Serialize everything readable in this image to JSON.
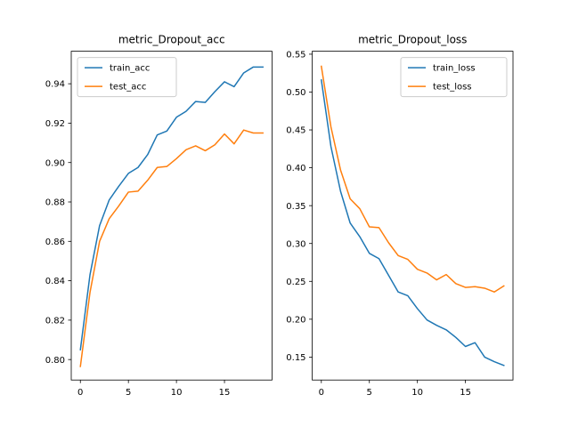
{
  "chart_data": [
    {
      "type": "line",
      "title": "metric_Dropout_acc",
      "xlabel": "",
      "ylabel": "",
      "xlim": [
        -0.95,
        19.95
      ],
      "ylim": [
        0.7896,
        0.9565
      ],
      "xticks": [
        0,
        5,
        10,
        15
      ],
      "yticks": [
        0.8,
        0.82,
        0.84,
        0.86,
        0.88,
        0.9,
        0.92,
        0.94
      ],
      "ytick_format": 2,
      "legend_position": "upper left",
      "grid": false,
      "x": [
        0,
        1,
        2,
        3,
        4,
        5,
        6,
        7,
        8,
        9,
        10,
        11,
        12,
        13,
        14,
        15,
        16,
        17,
        18,
        19
      ],
      "series": [
        {
          "name": "train_acc",
          "color": "#1f77b4",
          "values": [
            0.805,
            0.843,
            0.868,
            0.881,
            0.888,
            0.8945,
            0.8975,
            0.904,
            0.914,
            0.916,
            0.923,
            0.926,
            0.931,
            0.9305,
            0.936,
            0.941,
            0.9385,
            0.9455,
            0.9485,
            0.9485
          ]
        },
        {
          "name": "test_acc",
          "color": "#ff7f0e",
          "values": [
            0.7965,
            0.834,
            0.86,
            0.8715,
            0.878,
            0.885,
            0.8855,
            0.891,
            0.8975,
            0.898,
            0.902,
            0.9065,
            0.9085,
            0.906,
            0.909,
            0.9145,
            0.9095,
            0.9165,
            0.915,
            0.915
          ]
        }
      ]
    },
    {
      "type": "line",
      "title": "metric_Dropout_loss",
      "xlabel": "",
      "ylabel": "",
      "xlim": [
        -0.95,
        19.95
      ],
      "ylim": [
        0.1197,
        0.5539
      ],
      "xticks": [
        0,
        5,
        10,
        15
      ],
      "yticks": [
        0.15,
        0.2,
        0.25,
        0.3,
        0.35,
        0.4,
        0.45,
        0.5,
        0.55
      ],
      "ytick_format": 2,
      "legend_position": "upper right",
      "grid": false,
      "x": [
        0,
        1,
        2,
        3,
        4,
        5,
        6,
        7,
        8,
        9,
        10,
        11,
        12,
        13,
        14,
        15,
        16,
        17,
        18,
        19
      ],
      "series": [
        {
          "name": "train_loss",
          "color": "#1f77b4",
          "values": [
            0.516,
            0.428,
            0.369,
            0.327,
            0.309,
            0.287,
            0.28,
            0.258,
            0.236,
            0.231,
            0.214,
            0.199,
            0.192,
            0.186,
            0.176,
            0.164,
            0.169,
            0.15,
            0.144,
            0.139
          ]
        },
        {
          "name": "test_loss",
          "color": "#ff7f0e",
          "values": [
            0.534,
            0.454,
            0.397,
            0.359,
            0.346,
            0.322,
            0.321,
            0.301,
            0.284,
            0.279,
            0.266,
            0.261,
            0.252,
            0.259,
            0.247,
            0.242,
            0.243,
            0.241,
            0.236,
            0.244
          ]
        }
      ]
    }
  ]
}
